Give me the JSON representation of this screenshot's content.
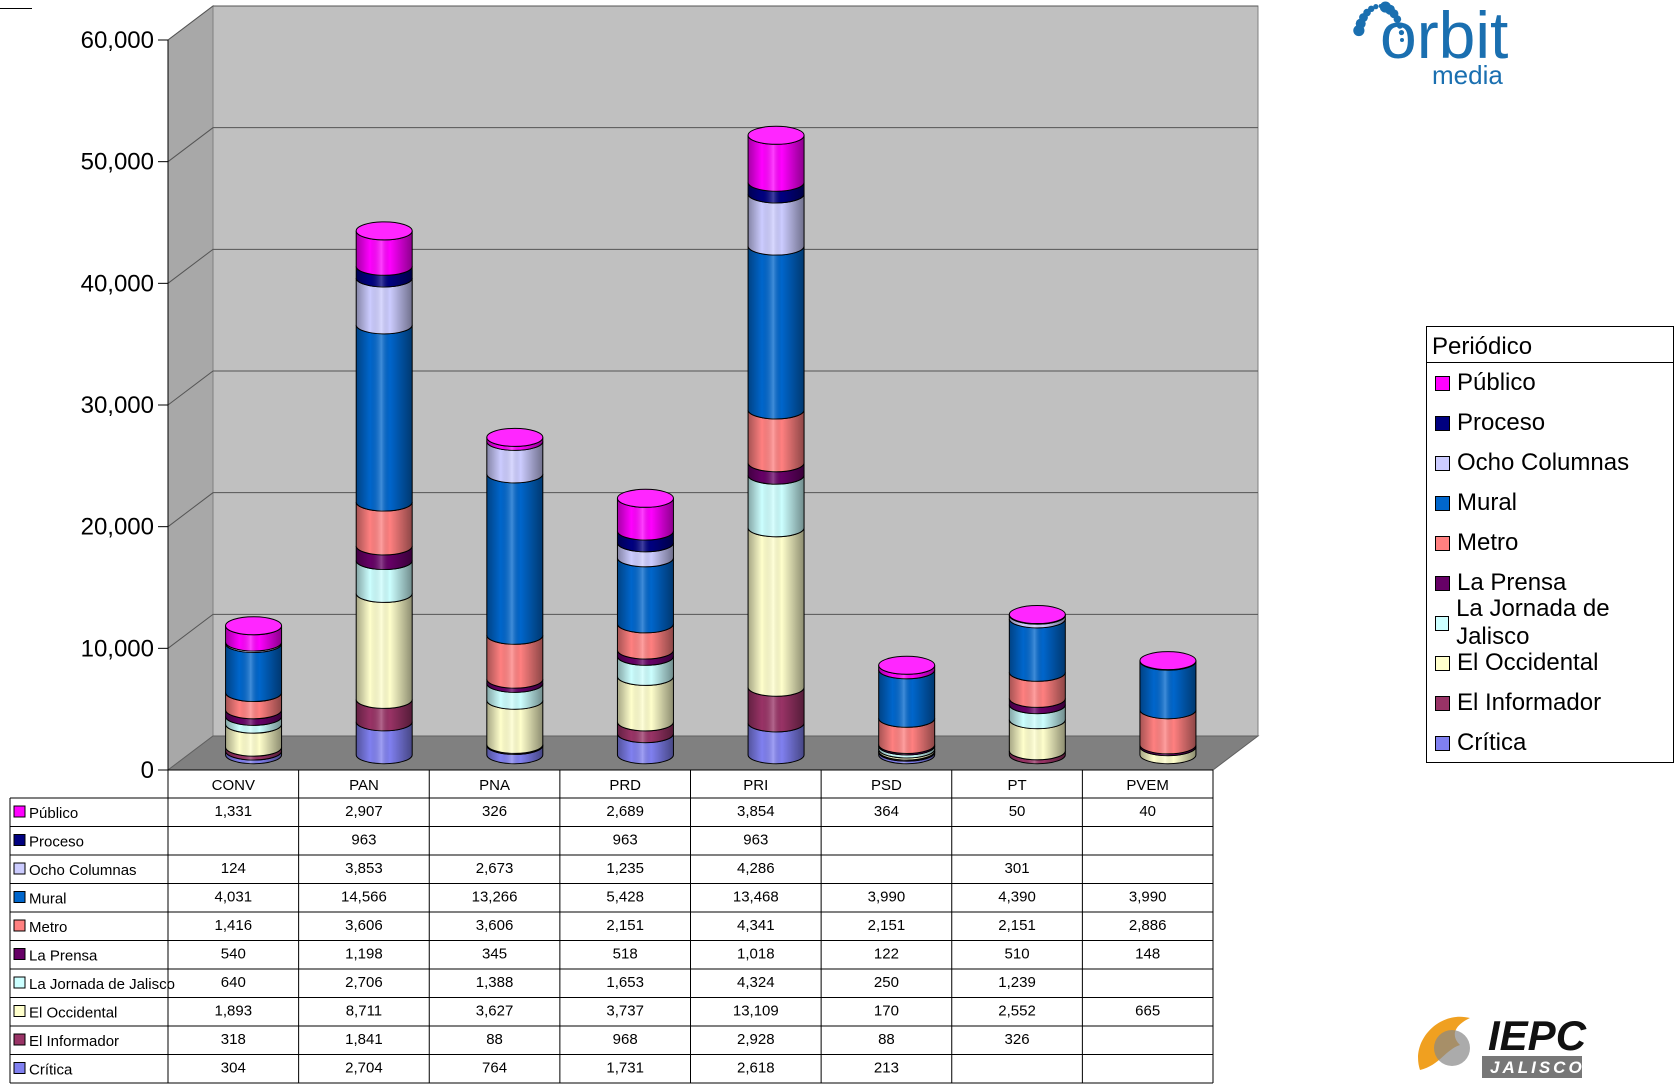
{
  "chart_data": {
    "type": "bar",
    "stacked": true,
    "categories": [
      "CONV",
      "PAN",
      "PNA",
      "PRD",
      "PRI",
      "PSD",
      "PT",
      "PVEM"
    ],
    "ylim": [
      0,
      60000
    ],
    "yticks": [
      0,
      10000,
      20000,
      30000,
      40000,
      50000,
      60000
    ],
    "ytick_labels": [
      "0",
      "10,000",
      "20,000",
      "30,000",
      "40,000",
      "50,000",
      "60,000"
    ],
    "grid": true,
    "legend_title": "Periódico",
    "legend_position": "right",
    "series": [
      {
        "name": "Crítica",
        "color": "#8080f0",
        "values": [
          304,
          2704,
          764,
          1731,
          2618,
          213,
          null,
          null
        ]
      },
      {
        "name": "El Informador",
        "color": "#993366",
        "values": [
          318,
          1841,
          88,
          968,
          2928,
          88,
          326,
          null
        ]
      },
      {
        "name": "El Occidental",
        "color": "#ffffcc",
        "values": [
          1893,
          8711,
          3627,
          3737,
          13109,
          170,
          2552,
          665
        ]
      },
      {
        "name": "La Jornada de Jalisco",
        "color": "#ccffff",
        "values": [
          640,
          2706,
          1388,
          1653,
          4324,
          250,
          1239,
          null
        ]
      },
      {
        "name": "La Prensa",
        "color": "#660066",
        "values": [
          540,
          1198,
          345,
          518,
          1018,
          122,
          510,
          148
        ]
      },
      {
        "name": "Metro",
        "color": "#ff8080",
        "values": [
          1416,
          3606,
          3606,
          2151,
          4341,
          2151,
          2151,
          2886
        ]
      },
      {
        "name": "Mural",
        "color": "#0066cc",
        "values": [
          4031,
          14566,
          13266,
          5428,
          13468,
          3990,
          4390,
          3990
        ]
      },
      {
        "name": "Ocho Columnas",
        "color": "#ccccff",
        "values": [
          124,
          3853,
          2673,
          1235,
          4286,
          null,
          301,
          null
        ]
      },
      {
        "name": "Proceso",
        "color": "#000080",
        "values": [
          null,
          963,
          null,
          963,
          963,
          null,
          null,
          null
        ]
      },
      {
        "name": "Público",
        "color": "#ff00ff",
        "values": [
          1331,
          2907,
          326,
          2689,
          3854,
          364,
          50,
          40
        ]
      }
    ],
    "table_rows": [
      {
        "name": "Público",
        "cells": [
          "1,331",
          "2,907",
          "326",
          "2,689",
          "3,854",
          "364",
          "50",
          "40"
        ]
      },
      {
        "name": "Proceso",
        "cells": [
          "",
          "963",
          "",
          "963",
          "963",
          "",
          "",
          ""
        ]
      },
      {
        "name": "Ocho Columnas",
        "cells": [
          "124",
          "3,853",
          "2,673",
          "1,235",
          "4,286",
          "",
          "301",
          ""
        ]
      },
      {
        "name": "Mural",
        "cells": [
          "4,031",
          "14,566",
          "13,266",
          "5,428",
          "13,468",
          "3,990",
          "4,390",
          "3,990"
        ]
      },
      {
        "name": "Metro",
        "cells": [
          "1,416",
          "3,606",
          "3,606",
          "2,151",
          "4,341",
          "2,151",
          "2,151",
          "2,886"
        ]
      },
      {
        "name": "La Prensa",
        "cells": [
          "540",
          "1,198",
          "345",
          "518",
          "1,018",
          "122",
          "510",
          "148"
        ]
      },
      {
        "name": "La Jornada de Jalisco",
        "cells": [
          "640",
          "2,706",
          "1,388",
          "1,653",
          "4,324",
          "250",
          "1,239",
          ""
        ]
      },
      {
        "name": "El Occidental",
        "cells": [
          "1,893",
          "8,711",
          "3,627",
          "3,737",
          "13,109",
          "170",
          "2,552",
          "665"
        ]
      },
      {
        "name": "El Informador",
        "cells": [
          "318",
          "1,841",
          "88",
          "968",
          "2,928",
          "88",
          "326",
          ""
        ]
      },
      {
        "name": "Crítica",
        "cells": [
          "304",
          "2,704",
          "764",
          "1,731",
          "2,618",
          "213",
          "",
          ""
        ]
      }
    ]
  },
  "logos": {
    "orbit": {
      "word": "orbit",
      "sub": "media",
      "color": "#1a6fb0"
    },
    "iepc": {
      "word": "IEPC",
      "sub": "JALISCO",
      "color": "#f0a020"
    }
  }
}
